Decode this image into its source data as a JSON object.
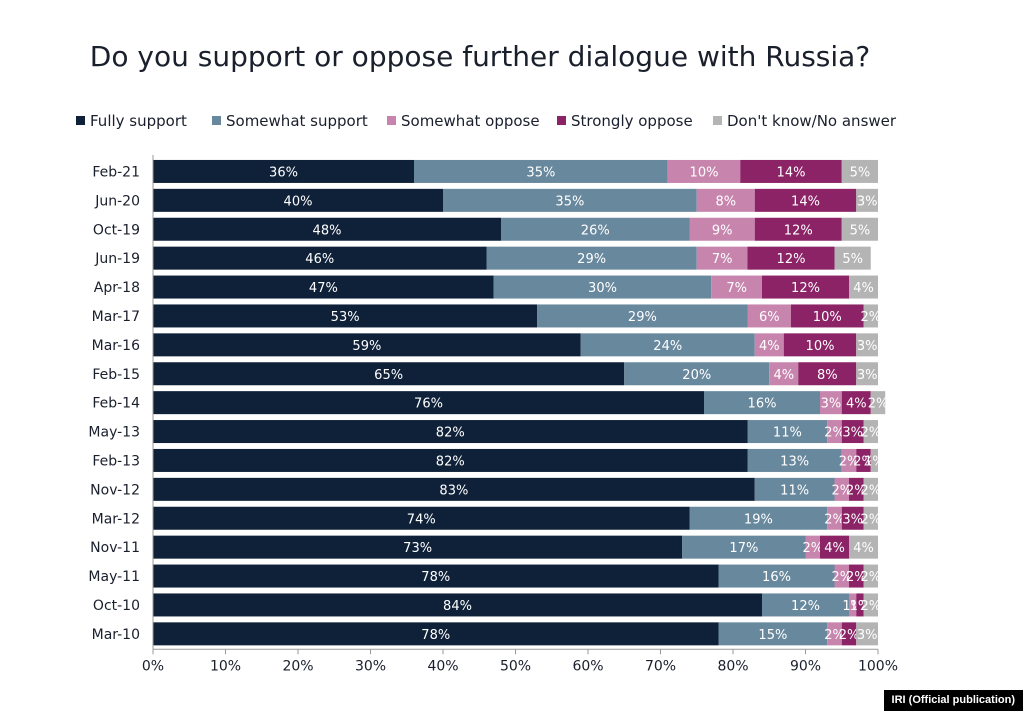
{
  "chart_data": {
    "type": "bar",
    "orientation": "horizontal",
    "stacked": true,
    "title": "Do you support or oppose further dialogue with Russia?",
    "categories": [
      "Feb-21",
      "Jun-20",
      "Oct-19",
      "Jun-19",
      "Apr-18",
      "Mar-17",
      "Mar-16",
      "Feb-15",
      "Feb-14",
      "May-13",
      "Feb-13",
      "Nov-12",
      "Mar-12",
      "Nov-11",
      "May-11",
      "Oct-10",
      "Mar-10"
    ],
    "series": [
      {
        "name": "Fully support",
        "color": "#0f2139",
        "label_color": "#ffffff",
        "values": [
          36,
          40,
          48,
          46,
          47,
          53,
          59,
          65,
          76,
          82,
          82,
          83,
          74,
          73,
          78,
          84,
          78
        ]
      },
      {
        "name": "Somewhat support",
        "color": "#68889d",
        "label_color": "#ffffff",
        "values": [
          35,
          35,
          26,
          29,
          30,
          29,
          24,
          20,
          16,
          11,
          13,
          11,
          19,
          17,
          16,
          12,
          15
        ]
      },
      {
        "name": "Somewhat oppose",
        "color": "#c785ae",
        "label_color": "#ffffff",
        "values": [
          10,
          8,
          9,
          7,
          7,
          6,
          4,
          4,
          3,
          2,
          2,
          2,
          2,
          2,
          2,
          1,
          2
        ]
      },
      {
        "name": "Strongly oppose",
        "color": "#8b2366",
        "label_color": "#ffffff",
        "values": [
          14,
          14,
          12,
          12,
          12,
          10,
          10,
          8,
          4,
          3,
          2,
          2,
          3,
          4,
          2,
          1,
          2
        ]
      },
      {
        "name": "Don't know/No answer",
        "color": "#b4b4b4",
        "label_color": "#ffffff",
        "values": [
          5,
          3,
          5,
          5,
          4,
          2,
          3,
          3,
          2,
          2,
          1,
          2,
          2,
          4,
          2,
          2,
          3
        ]
      }
    ],
    "value_labels": [
      [
        "36%",
        "35%",
        "10%",
        "14%",
        "5%"
      ],
      [
        "40%",
        "35%",
        "8%",
        "14%",
        "3%"
      ],
      [
        "48%",
        "26%",
        "9%",
        "12%",
        "5%"
      ],
      [
        "46%",
        "29%",
        "7%",
        "12%",
        "5%"
      ],
      [
        "47%",
        "30%",
        "7%",
        "12%",
        "4%"
      ],
      [
        "53%",
        "29%",
        "6%",
        "10%",
        "2%"
      ],
      [
        "59%",
        "24%",
        "4%",
        "10%",
        "3%"
      ],
      [
        "65%",
        "20%",
        "4%",
        "8%",
        "3%"
      ],
      [
        "76%",
        "16%",
        "3%",
        "4%",
        "2%"
      ],
      [
        "82%",
        "11%",
        "2%",
        "3%",
        "2%"
      ],
      [
        "82%",
        "13%",
        "2%",
        "2%",
        "1%"
      ],
      [
        "83%",
        "11%",
        "2%",
        "2%",
        "2%"
      ],
      [
        "74%",
        "19%",
        "2%",
        "3%",
        "2%"
      ],
      [
        "73%",
        "17%",
        "2%",
        "4%",
        "4%"
      ],
      [
        "78%",
        "16%",
        "2%",
        "2%",
        "2%"
      ],
      [
        "84%",
        "12%",
        "1%",
        "1%",
        "2%"
      ],
      [
        "78%",
        "15%",
        "2%",
        "2%",
        "3%"
      ]
    ],
    "x_ticks": [
      "0%",
      "10%",
      "20%",
      "30%",
      "40%",
      "50%",
      "60%",
      "70%",
      "80%",
      "90%",
      "100%"
    ],
    "xlim": [
      0,
      100
    ],
    "grid": false,
    "legend_position": "top"
  },
  "credit": "IRI (Official publication)"
}
